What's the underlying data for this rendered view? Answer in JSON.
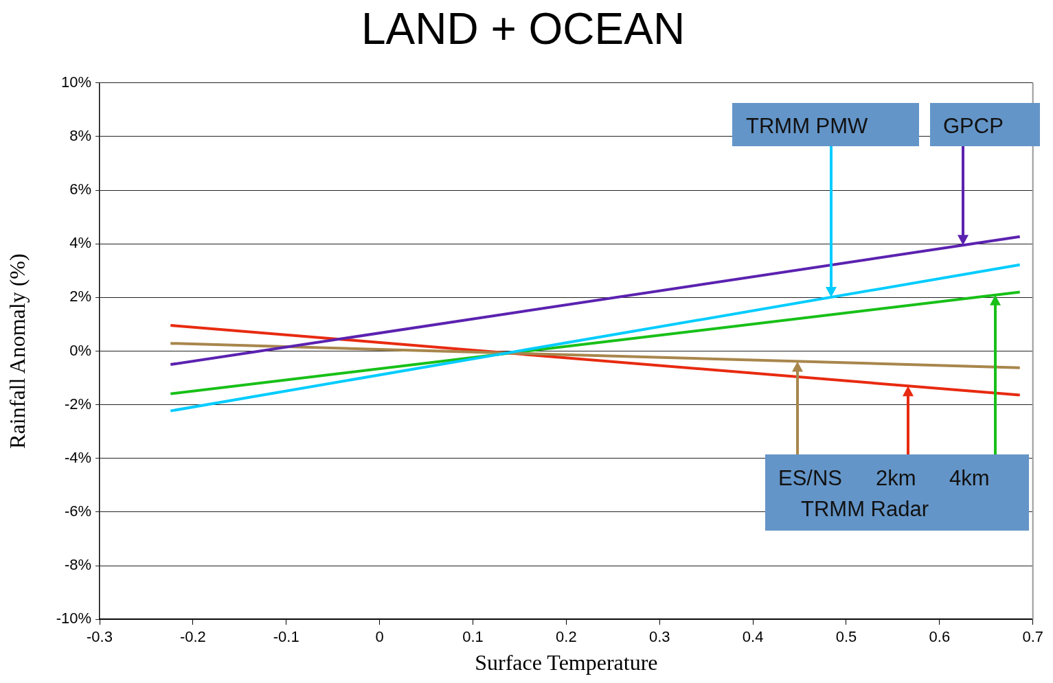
{
  "chart_data": {
    "type": "line",
    "title": "LAND + OCEAN",
    "xlabel": "Surface Temperature",
    "ylabel": "Rainfall Anomaly (%)",
    "x": [
      -0.224,
      0.686
    ],
    "series": [
      {
        "name": "TRMM PMW",
        "color": "#00ccff",
        "values": [
          -2.23,
          3.22
        ]
      },
      {
        "name": "GPCP",
        "color": "#5b22b0",
        "values": [
          -0.5,
          4.27
        ]
      },
      {
        "name": "ES/NS",
        "color": "#a8864c",
        "values": [
          0.29,
          -0.62
        ]
      },
      {
        "name": "2km",
        "color": "#e82a10",
        "values": [
          0.96,
          -1.64
        ]
      },
      {
        "name": "4km",
        "color": "#18c018",
        "values": [
          -1.59,
          2.2
        ]
      }
    ],
    "annotations": [
      "TRMM Radar"
    ],
    "xlim": [
      -0.3,
      0.7
    ],
    "xticks": [
      -0.3,
      -0.2,
      -0.1,
      0,
      0.1,
      0.2,
      0.3,
      0.4,
      0.5,
      0.6,
      0.7
    ],
    "ylim": [
      -10,
      10
    ],
    "yticks": [
      {
        "value": -10,
        "label": "-10%"
      },
      {
        "value": -8,
        "label": "-8%"
      },
      {
        "value": -6,
        "label": "-6%"
      },
      {
        "value": -4,
        "label": "-4%"
      },
      {
        "value": -2,
        "label": "-2%"
      },
      {
        "value": 0,
        "label": "0%"
      },
      {
        "value": 2,
        "label": "2%"
      },
      {
        "value": 4,
        "label": "4%"
      },
      {
        "value": 6,
        "label": "6%"
      },
      {
        "value": 8,
        "label": "8%"
      },
      {
        "value": 10,
        "label": "10%"
      }
    ],
    "grid": "y",
    "legend": false,
    "marker": "none",
    "line_style": "solid"
  }
}
